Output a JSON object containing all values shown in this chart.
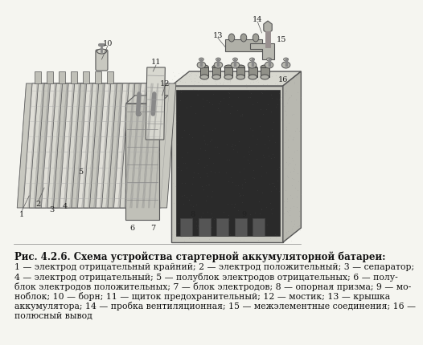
{
  "bg_color": "#f5f5f0",
  "title_text": "Рис. 4.2.6. Схема устройства стартерной аккумуляторной батареи:",
  "caption_lines": [
    "1 — электрод отрицательный крайний; 2 — электрод положительный; 3 — сепаратор;",
    "4 — электрод отрицательный; 5 — полублок электродов отрицательных; 6 — полу-",
    "блок электродов положительных; 7 — блок электродов; 8 — опорная призма; 9 — мо-",
    "ноблок; 10 — борн; 11 — щиток предохранительный; 12 — мостик; 13 — крышка",
    "аккумулятора; 14 — пробка вентиляционная; 15 — межэлементные соединения; 16 —",
    "полюсный вывод"
  ],
  "title_fontsize": 8.5,
  "caption_fontsize": 7.8,
  "title_bold": true
}
